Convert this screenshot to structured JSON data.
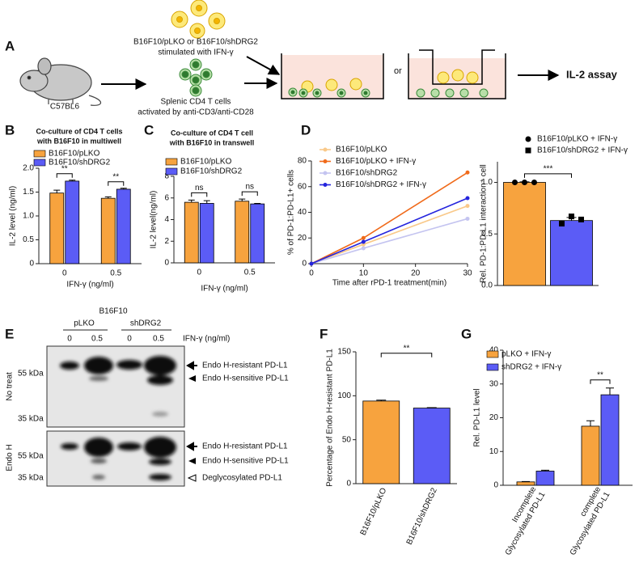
{
  "panel_a": {
    "label": "A",
    "tumor": "B16F10/pLKO or B16F10/shDRG2",
    "tumor_treatment": "stimulated with IFN-γ",
    "mouse": "C57BL6",
    "tcells": "Splenic CD4 T cells",
    "tcells_treatment": "activated by anti-CD3/anti-CD28",
    "or": "or",
    "assay": "IL-2 assay"
  },
  "panel_e": {
    "label": "E",
    "cell_line": "B16F10",
    "groups": [
      "pLKO",
      "shDRG2"
    ],
    "lanes": [
      "0",
      "0.5",
      "0",
      "0.5"
    ],
    "lane_unit": "IFN-γ (ng/ml)",
    "blots": [
      {
        "name": "No treat",
        "markers": [
          "55 kDa",
          "35 kDa"
        ],
        "bands": [
          "Endo H-resistant PD-L1",
          "Endo H-sensitive PD-L1"
        ]
      },
      {
        "name": "Endo H",
        "markers": [
          "55 kDa",
          "35 kDa"
        ],
        "bands": [
          "Endo H-resistant PD-L1",
          "Endo H-sensitive PD-L1",
          "Deglycosylated PD-L1"
        ]
      }
    ]
  },
  "chart_data": [
    {
      "type": "bar",
      "label": "B",
      "title": [
        "Co-culture of CD4 T cells",
        "with B16F10 in multiwell"
      ],
      "categories": [
        "0",
        "0.5"
      ],
      "series": [
        {
          "name": "B16F10/pLKO",
          "color": "#f7a33e",
          "values": [
            1.48,
            1.37
          ],
          "errors": [
            0.06,
            0.03
          ]
        },
        {
          "name": "B16F10/shDRG2",
          "color": "#5b5cf6",
          "values": [
            1.73,
            1.56
          ],
          "errors": [
            0.02,
            0.02
          ]
        }
      ],
      "annotations": [
        "**",
        "**"
      ],
      "xlabel": "IFN-γ (ng/ml)",
      "ylabel": "IL-2 level (ng/ml)",
      "ylim": [
        0,
        2
      ],
      "yticks": [
        0,
        0.5,
        {
          "value": 1,
          "label": "1.0"
        },
        1.5,
        {
          "value": 2,
          "label": "2.0"
        }
      ]
    },
    {
      "type": "bar",
      "label": "C",
      "title": [
        "Co-culture of CD4 T cell",
        "with B16F10 in transwell"
      ],
      "categories": [
        "0",
        "0.5"
      ],
      "series": [
        {
          "name": "B16F10/pLKO",
          "color": "#f7a33e",
          "values": [
            5.6,
            5.7
          ],
          "errors": [
            0.2,
            0.2
          ]
        },
        {
          "name": "B16F10/shDRG2",
          "color": "#5b5cf6",
          "values": [
            5.5,
            5.45
          ],
          "errors": [
            0.25,
            0.05
          ]
        }
      ],
      "annotations": [
        "ns",
        "ns"
      ],
      "xlabel": "IFN-γ (ng/ml)",
      "ylabel": "IL-2 level(ng/ml)",
      "ylim": [
        0,
        8
      ],
      "yticks": [
        0,
        2,
        4,
        6,
        8
      ]
    },
    {
      "type": "line",
      "label": "D",
      "x": [
        0,
        10,
        30
      ],
      "series": [
        {
          "name": "B16F10/pLKO",
          "color": "#f9c98a",
          "values": [
            0,
            15,
            45
          ]
        },
        {
          "name": "B16F10/pLKO + IFN-γ",
          "color": "#f06a1a",
          "values": [
            0,
            20,
            71
          ]
        },
        {
          "name": "B16F10/shDRG2",
          "color": "#c4c4f0",
          "values": [
            0,
            12,
            35
          ]
        },
        {
          "name": "B16F10/shDRG2 + IFN-γ",
          "color": "#2424dd",
          "values": [
            0,
            17,
            51
          ]
        }
      ],
      "xlabel": "Time after rPD-1 treatment(min)",
      "ylabel": "% of PD-1:PD-L1+ cells",
      "xlim": [
        0,
        30
      ],
      "xticks": [
        0,
        10,
        20,
        30
      ],
      "ylim": [
        0,
        80
      ],
      "yticks": [
        0,
        20,
        40,
        60,
        80
      ]
    },
    {
      "type": "bar",
      "categories": [
        null
      ],
      "series": [
        {
          "name": "B16F10/pLKO + IFN-γ",
          "color": "#f7a33e",
          "marker": "circle",
          "values": [
            1.0
          ],
          "errors": [
            0.005
          ],
          "points": [
            [
              1.0,
              1.0,
              1.0
            ]
          ]
        },
        {
          "name": "B16F10/shDRG2 + IFN-γ",
          "color": "#5b5cf6",
          "marker": "square",
          "values": [
            0.63
          ],
          "errors": [
            0.03
          ],
          "points": [
            [
              0.6,
              0.67,
              0.64
            ]
          ]
        }
      ],
      "points_color": "#000000",
      "annotation": "***",
      "ylabel": "Rel. PD-1:PD-L1 interaction⁺ cell",
      "ylim": [
        0,
        1.2
      ],
      "yticks": [
        {
          "value": 0,
          "label": "0.0"
        },
        0.5,
        {
          "value": 1,
          "label": "1.0"
        }
      ]
    },
    {
      "type": "bar",
      "label": "F",
      "categories": [
        "B16F10/pLKO",
        "B16F10/shDRG2"
      ],
      "series": [
        {
          "colors": [
            "#f7a33e",
            "#5b5cf6"
          ],
          "values": [
            94,
            86
          ],
          "errors": [
            1,
            0.5
          ]
        }
      ],
      "annotation": "**",
      "ylabel": "Percentage of Endo H-resistant PD-L1",
      "ylim": [
        0,
        150
      ],
      "yticks": [
        0,
        50,
        100,
        150
      ]
    },
    {
      "type": "bar",
      "label": "G",
      "categories": [
        [
          "Incomplete",
          "Glycosylated PD-L1"
        ],
        [
          "complete",
          "Glycosylated PD-L1"
        ]
      ],
      "series": [
        {
          "name": "pLKO + IFN-γ",
          "color": "#f7a33e",
          "values": [
            1.0,
            17.5
          ],
          "errors": [
            0.1,
            1.6
          ]
        },
        {
          "name": "shDRG2 + IFN-γ",
          "color": "#5b5cf6",
          "values": [
            4.2,
            26.8
          ],
          "errors": [
            0.25,
            2.0
          ]
        }
      ],
      "annotations": [
        null,
        "**"
      ],
      "ylabel": "Rel. PD-L1 level",
      "ylim": [
        0,
        40
      ],
      "yticks": [
        0,
        10,
        20,
        30,
        40
      ]
    }
  ]
}
